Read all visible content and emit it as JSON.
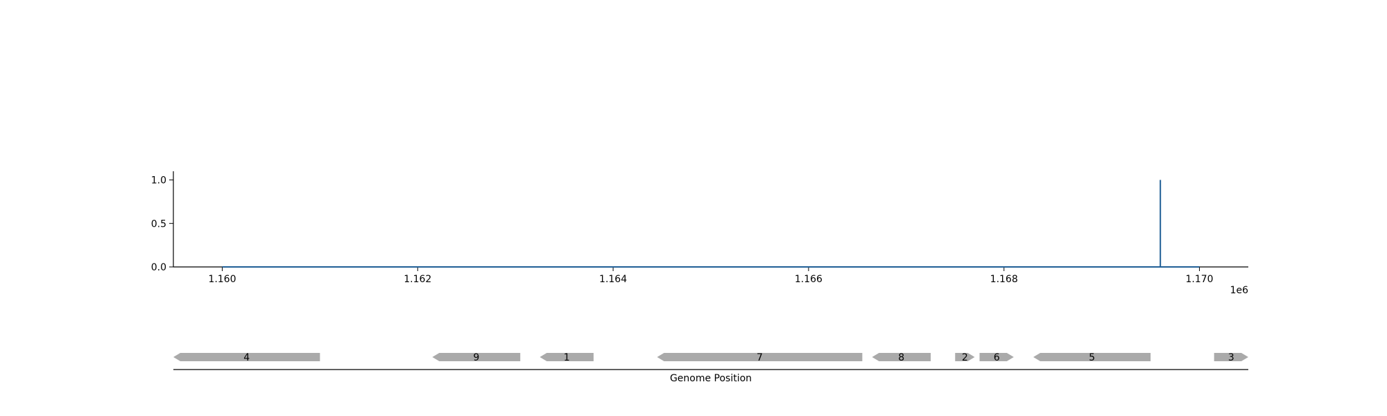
{
  "chart_data": [
    {
      "type": "line",
      "color": "#1f5f96",
      "baseline": {
        "x": [
          1160000,
          1170000
        ],
        "y": [
          0,
          0
        ]
      },
      "series": [
        {
          "x": [
            1169600,
            1169600
          ],
          "y": [
            0,
            1.0
          ]
        }
      ],
      "xlim": [
        1159500,
        1170500
      ],
      "ylim": [
        0,
        1.1
      ],
      "x_ticks": [
        1160000,
        1162000,
        1164000,
        1166000,
        1168000,
        1170000
      ],
      "x_tick_labels": [
        "1.160",
        "1.162",
        "1.164",
        "1.166",
        "1.168",
        "1.170"
      ],
      "x_offset_label": "1e6",
      "y_ticks": [
        0,
        0.5,
        1.0
      ],
      "y_tick_labels": [
        "0.0",
        "0.5",
        "1.0"
      ],
      "grid": false
    },
    {
      "type": "gene-track",
      "xlabel": "Genome Position",
      "gene_color": "#aaaaaa",
      "genes": [
        {
          "label": "4",
          "start": 1159500,
          "end": 1161000,
          "strand": "-"
        },
        {
          "label": "9",
          "start": 1162150,
          "end": 1163050,
          "strand": "-"
        },
        {
          "label": "1",
          "start": 1163250,
          "end": 1163800,
          "strand": "-"
        },
        {
          "label": "7",
          "start": 1164450,
          "end": 1166550,
          "strand": "-"
        },
        {
          "label": "8",
          "start": 1166650,
          "end": 1167250,
          "strand": "-"
        },
        {
          "label": "2",
          "start": 1167500,
          "end": 1167700,
          "strand": "+"
        },
        {
          "label": "6",
          "start": 1167750,
          "end": 1168100,
          "strand": "+"
        },
        {
          "label": "5",
          "start": 1168300,
          "end": 1169500,
          "strand": "-"
        },
        {
          "label": "3",
          "start": 1170150,
          "end": 1170500,
          "strand": "+"
        }
      ]
    }
  ]
}
